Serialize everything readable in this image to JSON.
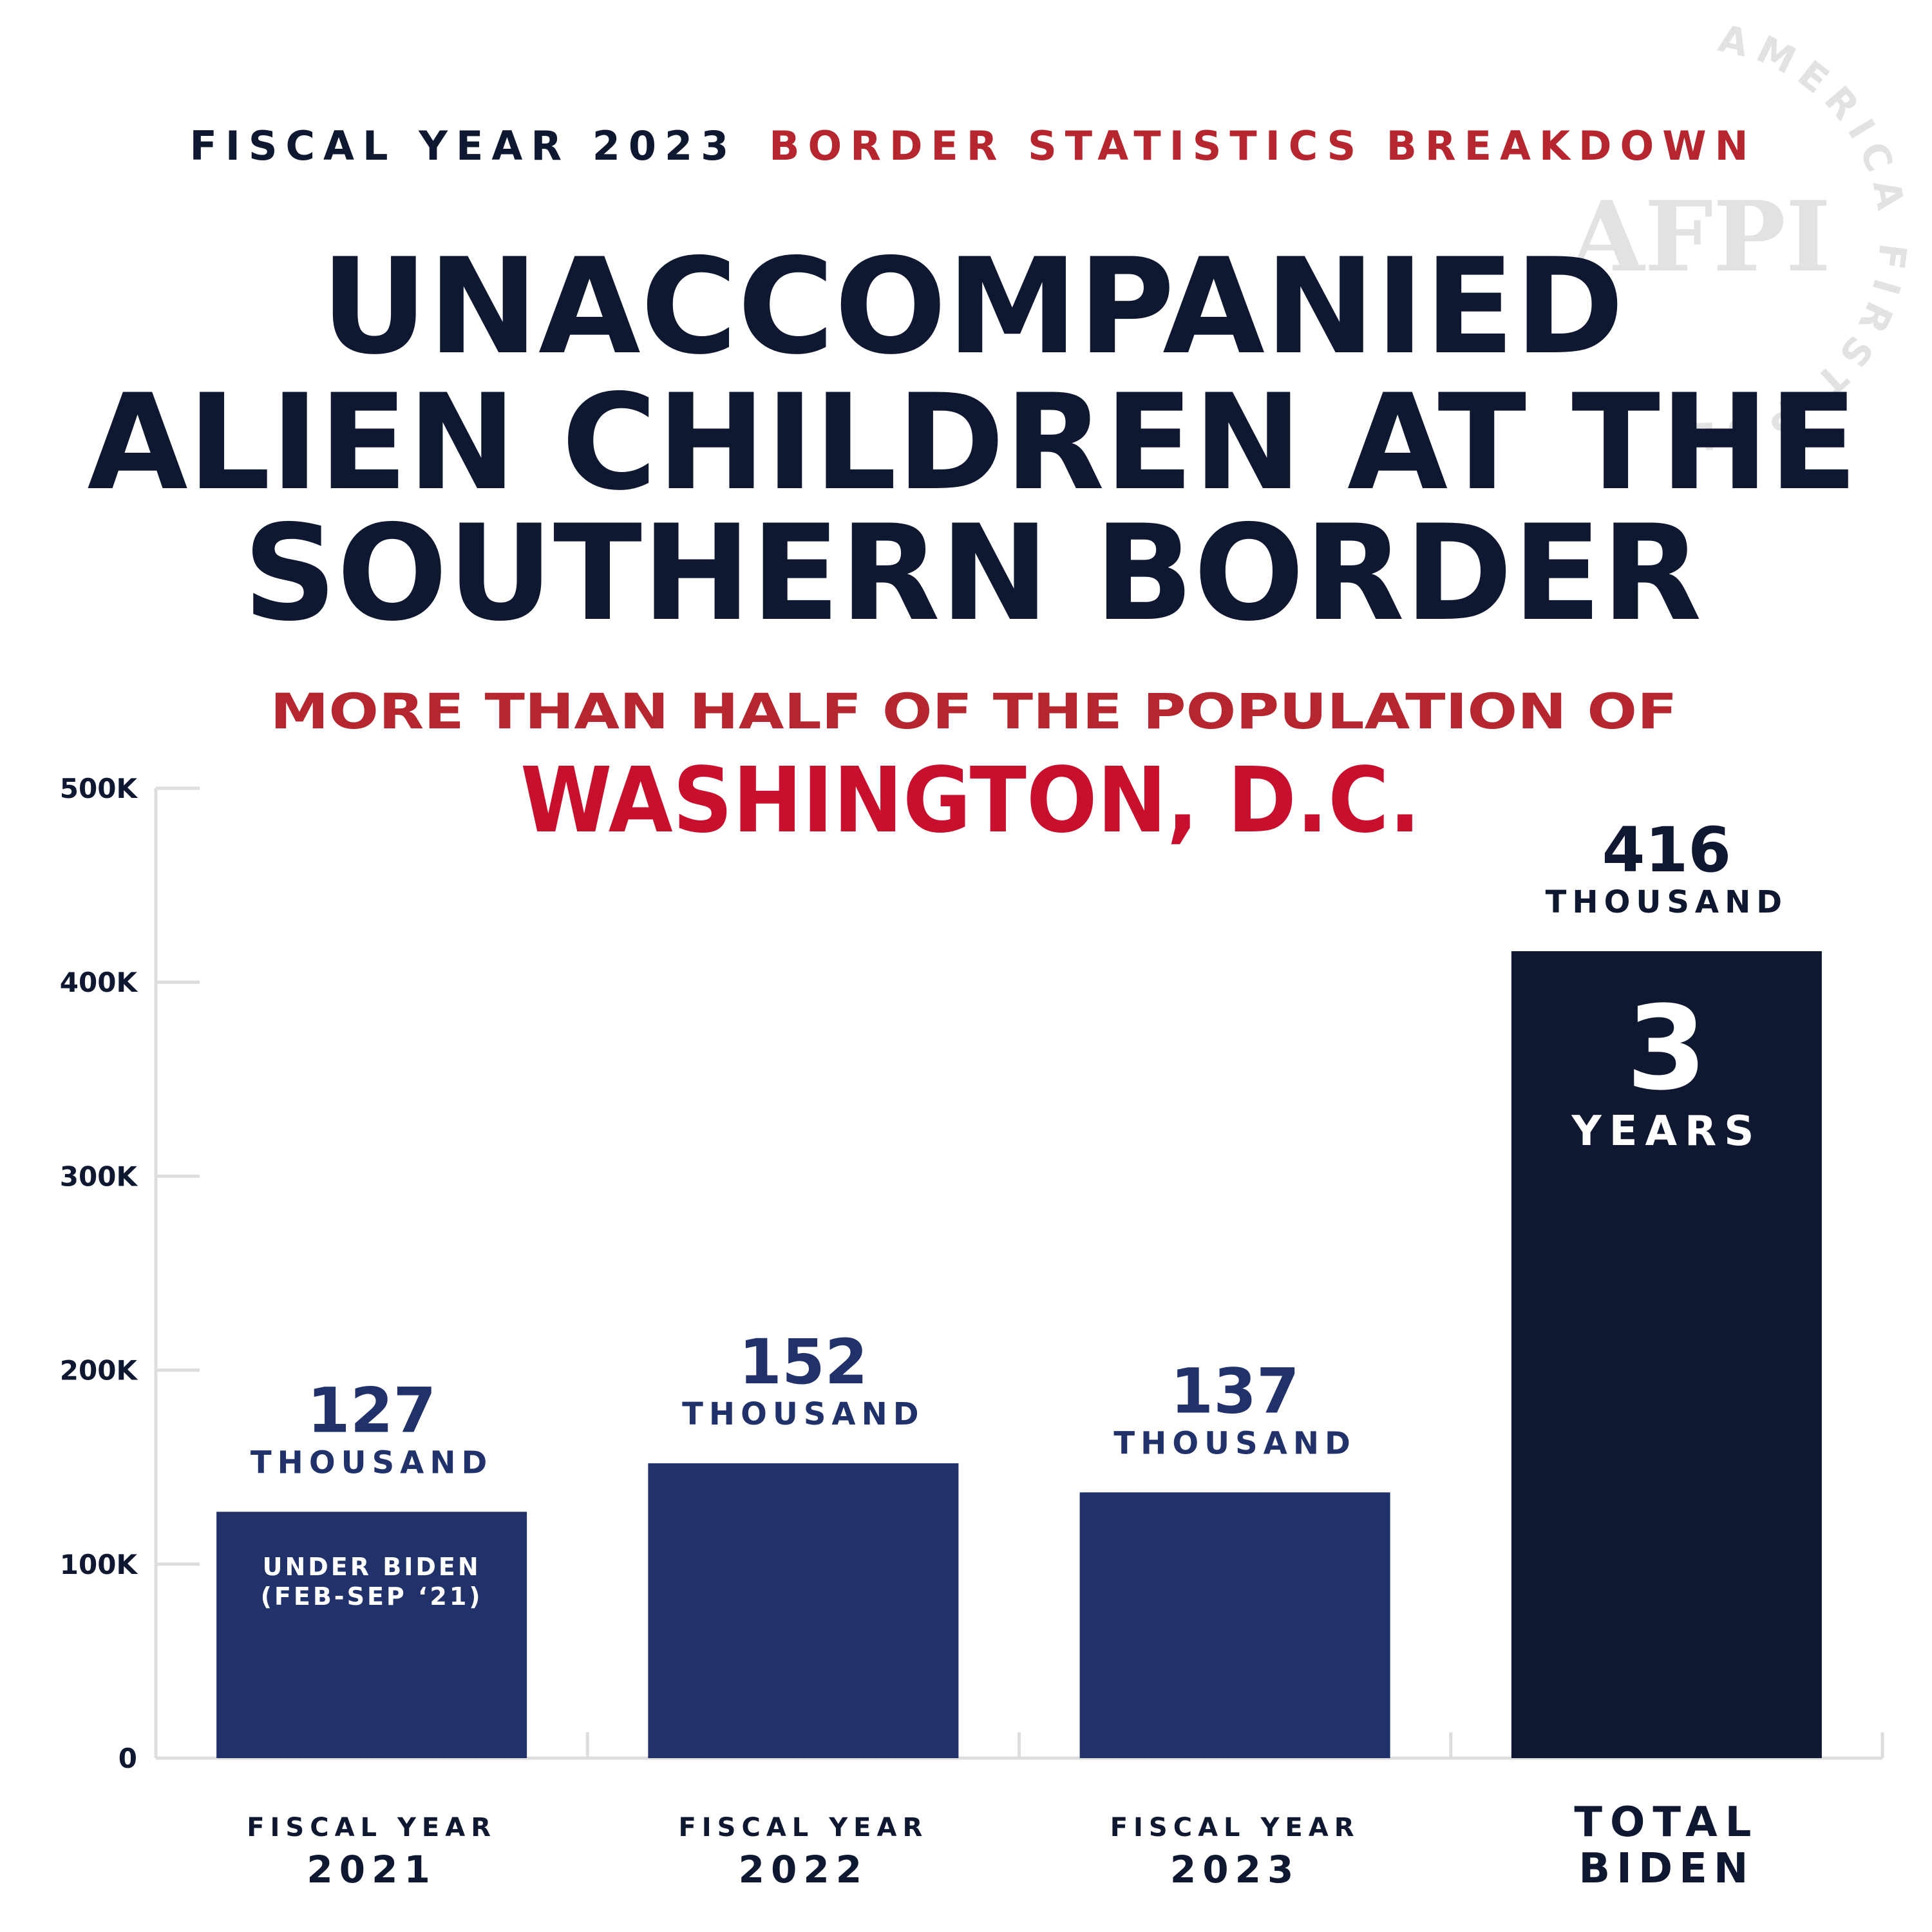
{
  "header": {
    "left": "FISCAL YEAR 2023",
    "right": "BORDER STATISTICS BREAKDOWN"
  },
  "watermark": {
    "ring": "AMERICA FIRST POLICY INSTITUTE",
    "logo": "AFPI"
  },
  "chart_data": {
    "type": "bar",
    "title": [
      "UNACCOMPANIED",
      "ALIEN CHILDREN AT THE",
      "SOUTHERN BORDER"
    ],
    "subtitle": [
      "MORE THAN HALF OF THE POPULATION OF",
      "WASHINGTON, D.C."
    ],
    "categories": [
      [
        "FISCAL YEAR",
        "2021"
      ],
      [
        "FISCAL YEAR",
        "2022"
      ],
      [
        "FISCAL YEAR",
        "2023"
      ],
      [
        "TOTAL",
        "BIDEN"
      ]
    ],
    "values": [
      127000,
      152000,
      137000,
      416000
    ],
    "value_labels": [
      [
        "127",
        "THOUSAND"
      ],
      [
        "152",
        "THOUSAND"
      ],
      [
        "137",
        "THOUSAND"
      ],
      [
        "416",
        "THOUSAND"
      ]
    ],
    "bar_notes": [
      [
        "UNDER BIDEN",
        "(FEB-SEP ‘21)"
      ],
      null,
      null,
      [
        "3",
        "YEARS"
      ]
    ],
    "colors": [
      "#21316a",
      "#21316a",
      "#21316a",
      "#0e1931"
    ],
    "ylim": [
      0,
      500000
    ],
    "yticks": [
      0,
      {
        "value": 100000,
        "label": "100K"
      },
      {
        "value": 200000,
        "label": "200K"
      },
      {
        "value": 300000,
        "label": "300K"
      },
      {
        "value": 400000,
        "label": "400K"
      },
      {
        "value": 500000,
        "label": "500K"
      }
    ]
  }
}
